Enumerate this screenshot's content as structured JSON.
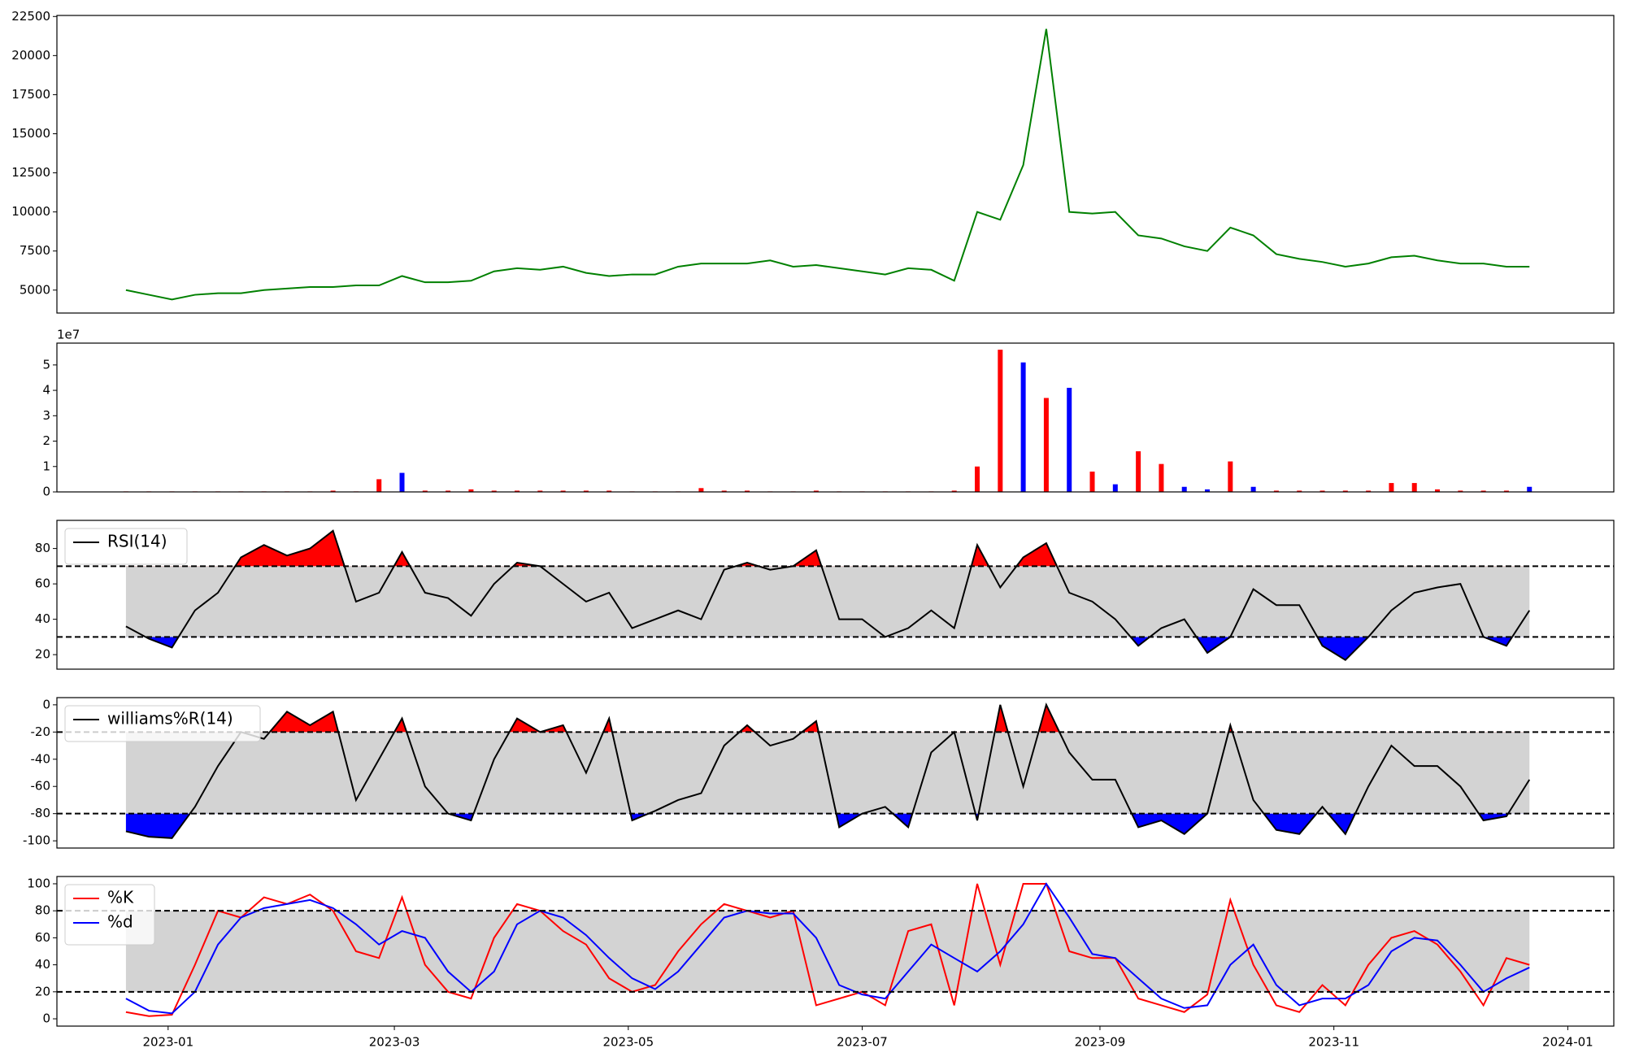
{
  "chart_data": [
    {
      "type": "line",
      "x": [
        -11,
        -5,
        1,
        7,
        13,
        19,
        25,
        31,
        37,
        43,
        49,
        55,
        61,
        67,
        73,
        79,
        85,
        91,
        97,
        103,
        109,
        115,
        121,
        127,
        133,
        139,
        145,
        151,
        157,
        163,
        169,
        175,
        181,
        187,
        193,
        199,
        205,
        211,
        217,
        223,
        229,
        235,
        241,
        247,
        253,
        259,
        265,
        271,
        277,
        283,
        289,
        295,
        301,
        307,
        313,
        319,
        325,
        331,
        337,
        343,
        349,
        355
      ],
      "series": [
        {
          "color": "#008000",
          "values": [
            5000,
            4700,
            4400,
            4700,
            4800,
            4800,
            5000,
            5100,
            5200,
            5200,
            5300,
            5300,
            5900,
            5500,
            5500,
            5600,
            6200,
            6400,
            6300,
            6500,
            6100,
            5900,
            6000,
            6000,
            6500,
            6700,
            6700,
            6700,
            6900,
            6500,
            6600,
            6400,
            6200,
            6000,
            6400,
            6300,
            5600,
            10000,
            9500,
            13000,
            21700,
            10000,
            9900,
            10000,
            8500,
            8300,
            7800,
            7500,
            9000,
            8500,
            7300,
            7000,
            6800,
            6500,
            6700,
            7100,
            7200,
            6900,
            6700,
            6700,
            6500,
            6500
          ]
        }
      ],
      "xlim": [
        -29,
        377
      ],
      "ylim": [
        3533,
        22567
      ],
      "yticks": [
        5000,
        7500,
        10000,
        12500,
        15000,
        17500,
        20000,
        22500
      ]
    },
    {
      "type": "bar",
      "x": [
        -11,
        -5,
        1,
        7,
        13,
        19,
        25,
        31,
        37,
        43,
        49,
        55,
        61,
        67,
        73,
        79,
        85,
        91,
        97,
        103,
        109,
        115,
        121,
        127,
        133,
        139,
        145,
        151,
        157,
        163,
        169,
        175,
        181,
        187,
        193,
        199,
        205,
        211,
        217,
        223,
        229,
        235,
        241,
        247,
        253,
        259,
        265,
        271,
        277,
        283,
        289,
        295,
        301,
        307,
        313,
        319,
        325,
        331,
        337,
        343,
        349,
        355
      ],
      "values": [
        0.02,
        0.02,
        0.02,
        0.02,
        0.02,
        0.02,
        0.02,
        0.02,
        0.02,
        0.05,
        0.02,
        0.5,
        0.75,
        0.05,
        0.05,
        0.1,
        0.05,
        0.05,
        0.05,
        0.05,
        0.05,
        0.05,
        0.02,
        0.02,
        0.02,
        0.15,
        0.05,
        0.05,
        0.02,
        0.02,
        0.05,
        0.02,
        0.02,
        0.02,
        0.02,
        0.02,
        0.05,
        1.0,
        5.6,
        5.1,
        3.7,
        4.1,
        0.8,
        0.3,
        1.6,
        1.1,
        0.2,
        0.1,
        1.2,
        0.2,
        0.05,
        0.05,
        0.05,
        0.05,
        0.05,
        0.35,
        0.35,
        0.1,
        0.05,
        0.05,
        0.05,
        0.2
      ],
      "colors": [
        "#ff0000",
        "#ff0000",
        "#ff0000",
        "#ff0000",
        "#ff0000",
        "#ff0000",
        "#ff0000",
        "#ff0000",
        "#ff0000",
        "#ff0000",
        "#ff0000",
        "#ff0000",
        "#0000ff",
        "#ff0000",
        "#ff0000",
        "#ff0000",
        "#ff0000",
        "#ff0000",
        "#ff0000",
        "#ff0000",
        "#ff0000",
        "#ff0000",
        "#ff0000",
        "#ff0000",
        "#ff0000",
        "#ff0000",
        "#ff0000",
        "#ff0000",
        "#ff0000",
        "#ff0000",
        "#ff0000",
        "#ff0000",
        "#ff0000",
        "#ff0000",
        "#ff0000",
        "#ff0000",
        "#ff0000",
        "#ff0000",
        "#ff0000",
        "#0000ff",
        "#ff0000",
        "#0000ff",
        "#ff0000",
        "#0000ff",
        "#ff0000",
        "#ff0000",
        "#0000ff",
        "#0000ff",
        "#ff0000",
        "#0000ff",
        "#ff0000",
        "#ff0000",
        "#ff0000",
        "#ff0000",
        "#ff0000",
        "#ff0000",
        "#ff0000",
        "#ff0000",
        "#ff0000",
        "#ff0000",
        "#ff0000",
        "#0000ff"
      ],
      "offset_label": "1e7",
      "xlim": [
        -29,
        377
      ],
      "ylim": [
        0,
        5.86
      ],
      "yticks": [
        0,
        1,
        2,
        3,
        4,
        5
      ]
    },
    {
      "type": "line",
      "x": [
        -11,
        -5,
        1,
        7,
        13,
        19,
        25,
        31,
        37,
        43,
        49,
        55,
        61,
        67,
        73,
        79,
        85,
        91,
        97,
        103,
        109,
        115,
        121,
        127,
        133,
        139,
        145,
        151,
        157,
        163,
        169,
        175,
        181,
        187,
        193,
        199,
        205,
        211,
        217,
        223,
        229,
        235,
        241,
        247,
        253,
        259,
        265,
        271,
        277,
        283,
        289,
        295,
        301,
        307,
        313,
        319,
        325,
        331,
        337,
        343,
        349,
        355
      ],
      "series": [
        {
          "name": "RSI(14)",
          "color": "#000000",
          "values": [
            36,
            29,
            24,
            45,
            55,
            75,
            82,
            76,
            80,
            90,
            50,
            55,
            78,
            55,
            52,
            42,
            60,
            72,
            70,
            60,
            50,
            55,
            35,
            40,
            45,
            40,
            68,
            72,
            68,
            70,
            79,
            40,
            40,
            30,
            35,
            45,
            35,
            82,
            58,
            75,
            83,
            55,
            50,
            40,
            25,
            35,
            40,
            21,
            30,
            57,
            48,
            48,
            25,
            17,
            30,
            45,
            55,
            58,
            60,
            30,
            25,
            45
          ]
        }
      ],
      "hlines": [
        70,
        30
      ],
      "band_color": "#d3d3d3",
      "fill_above_color": "#ff0000",
      "fill_below_color": "#0000ff",
      "legend": "upper left",
      "xlim": [
        -29,
        377
      ],
      "ylim": [
        11.8,
        95.9
      ],
      "yticks": [
        20,
        40,
        60,
        80
      ]
    },
    {
      "type": "line",
      "x": [
        -11,
        -5,
        1,
        7,
        13,
        19,
        25,
        31,
        37,
        43,
        49,
        55,
        61,
        67,
        73,
        79,
        85,
        91,
        97,
        103,
        109,
        115,
        121,
        127,
        133,
        139,
        145,
        151,
        157,
        163,
        169,
        175,
        181,
        187,
        193,
        199,
        205,
        211,
        217,
        223,
        229,
        235,
        241,
        247,
        253,
        259,
        265,
        271,
        277,
        283,
        289,
        295,
        301,
        307,
        313,
        319,
        325,
        331,
        337,
        343,
        349,
        355
      ],
      "series": [
        {
          "name": "williams%R(14)",
          "color": "#000000",
          "values": [
            -93,
            -97,
            -98,
            -75,
            -45,
            -20,
            -25,
            -5,
            -15,
            -5,
            -70,
            -40,
            -10,
            -60,
            -80,
            -85,
            -40,
            -10,
            -20,
            -15,
            -50,
            -10,
            -85,
            -78,
            -70,
            -65,
            -30,
            -15,
            -30,
            -25,
            -12,
            -90,
            -80,
            -75,
            -90,
            -35,
            -20,
            -85,
            0,
            -60,
            0,
            -35,
            -55,
            -55,
            -90,
            -85,
            -95,
            -80,
            -15,
            -70,
            -92,
            -95,
            -75,
            -95,
            -60,
            -30,
            -45,
            -45,
            -60,
            -85,
            -82,
            -55
          ]
        }
      ],
      "hlines": [
        -20,
        -80
      ],
      "band_color": "#d3d3d3",
      "fill_above_color": "#ff0000",
      "fill_below_color": "#0000ff",
      "legend": "upper left",
      "xlim": [
        -29,
        377
      ],
      "ylim": [
        -105.3,
        5.3
      ],
      "yticks": [
        -100,
        -80,
        -60,
        -40,
        -20,
        0
      ]
    },
    {
      "type": "line",
      "x": [
        -11,
        -5,
        1,
        7,
        13,
        19,
        25,
        31,
        37,
        43,
        49,
        55,
        61,
        67,
        73,
        79,
        85,
        91,
        97,
        103,
        109,
        115,
        121,
        127,
        133,
        139,
        145,
        151,
        157,
        163,
        169,
        175,
        181,
        187,
        193,
        199,
        205,
        211,
        217,
        223,
        229,
        235,
        241,
        247,
        253,
        259,
        265,
        271,
        277,
        283,
        289,
        295,
        301,
        307,
        313,
        319,
        325,
        331,
        337,
        343,
        349,
        355
      ],
      "series": [
        {
          "name": "%K",
          "color": "#ff0000",
          "values": [
            5,
            2,
            3,
            40,
            80,
            75,
            90,
            85,
            92,
            80,
            50,
            45,
            90,
            40,
            20,
            15,
            60,
            85,
            80,
            65,
            55,
            30,
            20,
            25,
            50,
            70,
            85,
            80,
            75,
            80,
            10,
            15,
            20,
            10,
            65,
            70,
            10,
            100,
            40,
            100,
            100,
            50,
            45,
            45,
            15,
            10,
            5,
            18,
            88,
            40,
            10,
            5,
            25,
            10,
            40,
            60,
            65,
            55,
            35,
            10,
            45,
            40
          ]
        },
        {
          "name": "%d",
          "color": "#0000ff",
          "values": [
            15,
            6,
            4,
            20,
            55,
            75,
            82,
            85,
            88,
            82,
            70,
            55,
            65,
            60,
            35,
            20,
            35,
            70,
            80,
            75,
            62,
            45,
            30,
            22,
            35,
            55,
            75,
            80,
            78,
            78,
            60,
            25,
            18,
            15,
            35,
            55,
            45,
            35,
            50,
            70,
            100,
            75,
            48,
            45,
            30,
            15,
            8,
            10,
            40,
            55,
            25,
            10,
            15,
            15,
            25,
            50,
            60,
            58,
            40,
            20,
            30,
            38
          ]
        }
      ],
      "hlines": [
        80,
        20
      ],
      "band_color": "#d3d3d3",
      "legend": "upper left",
      "xlim": [
        -29,
        377
      ],
      "ylim": [
        -5.4,
        105.4
      ],
      "yticks": [
        0,
        20,
        40,
        60,
        80,
        100
      ],
      "xticks": [
        {
          "value": 0,
          "label": "2023-01"
        },
        {
          "value": 59,
          "label": "2023-03"
        },
        {
          "value": 120,
          "label": "2023-05"
        },
        {
          "value": 181,
          "label": "2023-07"
        },
        {
          "value": 243,
          "label": "2023-09"
        },
        {
          "value": 304,
          "label": "2023-11"
        },
        {
          "value": 365,
          "label": "2024-01"
        }
      ]
    }
  ]
}
